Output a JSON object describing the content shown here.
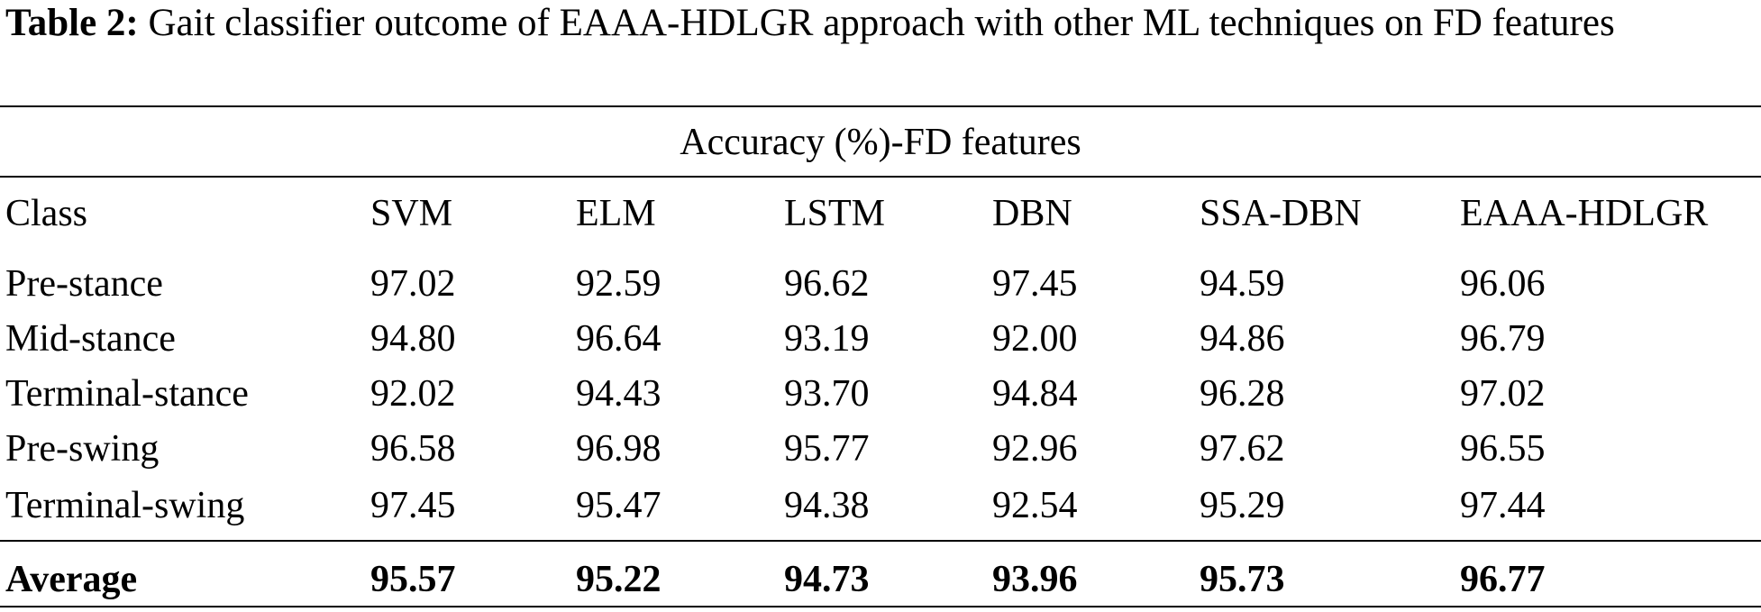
{
  "caption": {
    "label": "Table 2:",
    "text": "Gait classifier outcome of EAAA-HDLGR approach with other ML techniques on FD features"
  },
  "table": {
    "group_header": "Accuracy (%)-FD features",
    "columns": [
      "Class",
      "SVM",
      "ELM",
      "LSTM",
      "DBN",
      "SSA-DBN",
      "EAAA-HDLGR"
    ],
    "rows": [
      [
        "Pre-stance",
        "97.02",
        "92.59",
        "96.62",
        "97.45",
        "94.59",
        "96.06"
      ],
      [
        "Mid-stance",
        "94.80",
        "96.64",
        "93.19",
        "92.00",
        "94.86",
        "96.79"
      ],
      [
        "Terminal-stance",
        "92.02",
        "94.43",
        "93.70",
        "94.84",
        "96.28",
        "97.02"
      ],
      [
        "Pre-swing",
        "96.58",
        "96.98",
        "95.77",
        "92.96",
        "97.62",
        "96.55"
      ],
      [
        "Terminal-swing",
        "97.45",
        "95.47",
        "94.38",
        "92.54",
        "95.29",
        "97.44"
      ]
    ],
    "average": [
      "Average",
      "95.57",
      "95.22",
      "94.73",
      "93.96",
      "95.73",
      "96.77"
    ]
  }
}
